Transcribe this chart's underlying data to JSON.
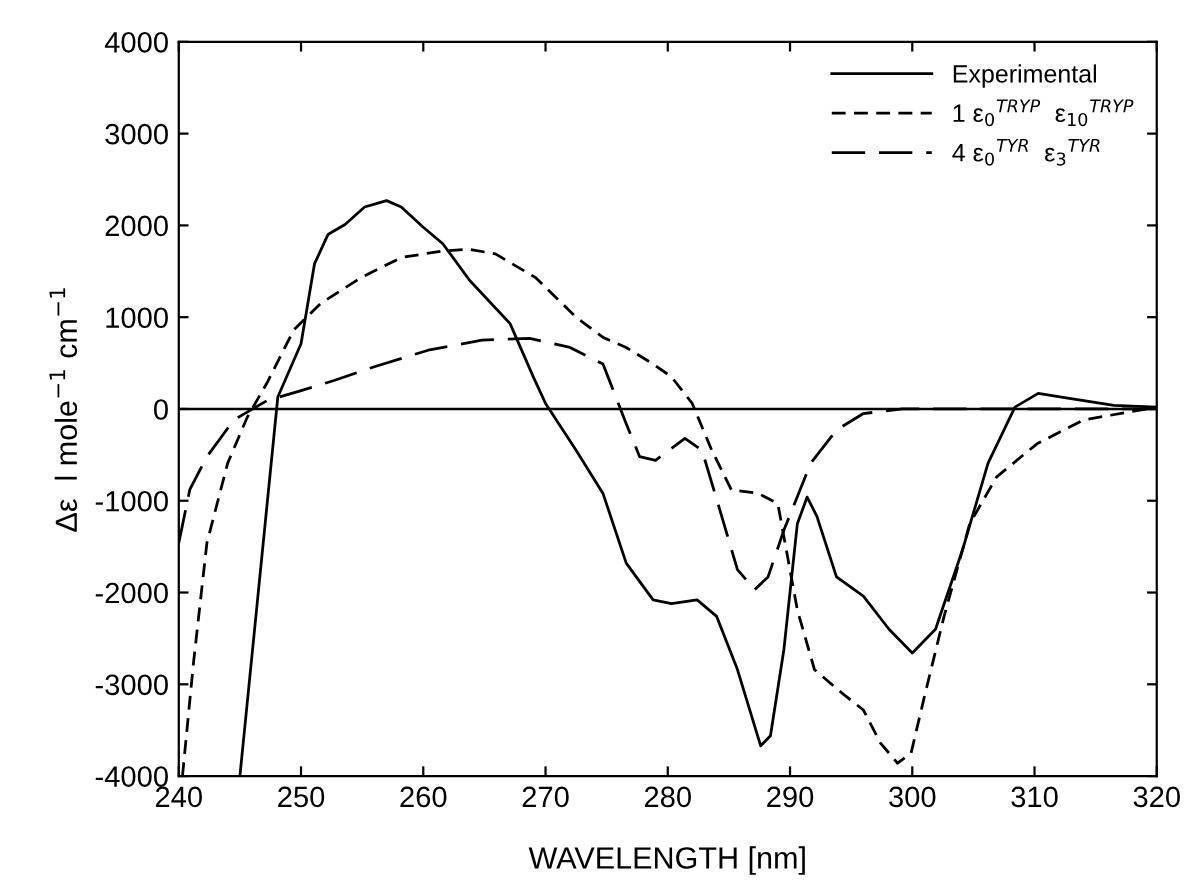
{
  "chart_data": {
    "type": "line",
    "xlabel": "WAVELENGTH [nm]",
    "ylabel": "Δε  l mole$^{−1}$ cm$^{−1}$",
    "xlim": [
      240,
      320
    ],
    "ylim": [
      -4000,
      4000
    ],
    "xticks": [
      240,
      250,
      260,
      270,
      280,
      290,
      300,
      310,
      320
    ],
    "yticks": [
      -4000,
      -3000,
      -2000,
      -1000,
      0,
      1000,
      2000,
      3000,
      4000
    ],
    "grid": false,
    "legend": "top right",
    "marker": "none",
    "ref_lines": [
      {
        "axis": "y",
        "value": 0,
        "color": "#000000",
        "line_style": "solid"
      }
    ],
    "series": [
      {
        "name": "Experimental",
        "color": "#000000",
        "line_style": "solid",
        "x": [
          245,
          248.1,
          250,
          251.1,
          252.2,
          253.6,
          255.2,
          257,
          258.2,
          260,
          261.6,
          263.8,
          267.1,
          269,
          270,
          272.5,
          274.7,
          276.6,
          278.8,
          280.3,
          282.4,
          284,
          285.7,
          287.6,
          288.4,
          289.5,
          290.6,
          291.4,
          292.2,
          293.8,
          296,
          298.1,
          300,
          301.9,
          304.1,
          306.2,
          308.4,
          310.3,
          312.2,
          316.5,
          320
        ],
        "values": [
          -4000,
          130,
          710,
          1580,
          1900,
          2010,
          2200,
          2270,
          2200,
          1980,
          1800,
          1400,
          930,
          350,
          60,
          -450,
          -920,
          -1680,
          -2080,
          -2120,
          -2080,
          -2260,
          -2840,
          -3670,
          -3560,
          -2620,
          -1250,
          -960,
          -1170,
          -1830,
          -2040,
          -2400,
          -2660,
          -2400,
          -1540,
          -590,
          20,
          170,
          130,
          40,
          20
        ]
      },
      {
        "name": "1 ε$_{0}$$^{TRYP}$  ε$_{10}$$^{TRYP}$",
        "color": "#000000",
        "line_style": "dashed",
        "x": [
          240.3,
          241.2,
          242.3,
          244,
          245.6,
          247.2,
          249.4,
          251.6,
          254.9,
          258.2,
          261.5,
          263.7,
          265.9,
          269.2,
          272.5,
          274.7,
          276.6,
          278.8,
          280.3,
          282,
          283.6,
          285.2,
          287.4,
          289,
          289.8,
          290.6,
          292,
          294.2,
          296,
          297.4,
          298.8,
          299.9,
          301,
          302.6,
          304.7,
          306.9,
          310.2,
          314,
          320
        ],
        "values": [
          -4000,
          -2770,
          -1460,
          -590,
          -90,
          280,
          860,
          1150,
          1430,
          1650,
          1720,
          1740,
          1690,
          1430,
          1000,
          780,
          670,
          490,
          350,
          60,
          -450,
          -880,
          -920,
          -1030,
          -1610,
          -2190,
          -2840,
          -3090,
          -3280,
          -3640,
          -3860,
          -3750,
          -3130,
          -2260,
          -1250,
          -740,
          -380,
          -120,
          20
        ]
      },
      {
        "name": "4 ε$_{0}$$^{TYR}$  ε$_{3}$$^{TYR}$",
        "color": "#000000",
        "line_style": "long dashed",
        "x": [
          240,
          240.9,
          242.3,
          244.5,
          247.2,
          250,
          252.7,
          256,
          260.4,
          264.8,
          268.7,
          272,
          274.7,
          276.6,
          277.7,
          279,
          281.4,
          282.8,
          284.1,
          285.7,
          287.1,
          288.2,
          289.5,
          291.7,
          293.8,
          296,
          299.2,
          320
        ],
        "values": [
          -1460,
          -880,
          -520,
          -120,
          90,
          200,
          310,
          460,
          640,
          750,
          770,
          670,
          490,
          -160,
          -520,
          -560,
          -320,
          -450,
          -1030,
          -1750,
          -1970,
          -1830,
          -1320,
          -590,
          -230,
          -50,
          0,
          0
        ]
      }
    ]
  }
}
